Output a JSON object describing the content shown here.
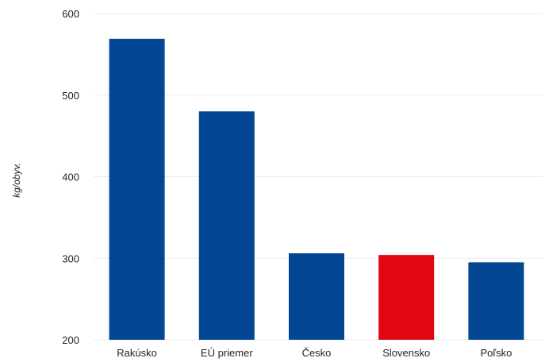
{
  "chart_data": {
    "type": "bar",
    "categories": [
      "Rakúsko",
      "EÚ priemer",
      "Česko",
      "Slovensko",
      "Poľsko"
    ],
    "values": [
      569,
      480,
      306,
      304,
      295
    ],
    "ylabel": "kg/obyv.",
    "ylim": [
      200,
      600
    ],
    "yticks": [
      200,
      300,
      400,
      500,
      600
    ],
    "grid": true,
    "colors": {
      "default": "#034693",
      "highlight": "#e30613"
    },
    "highlight_category": "Slovensko"
  }
}
